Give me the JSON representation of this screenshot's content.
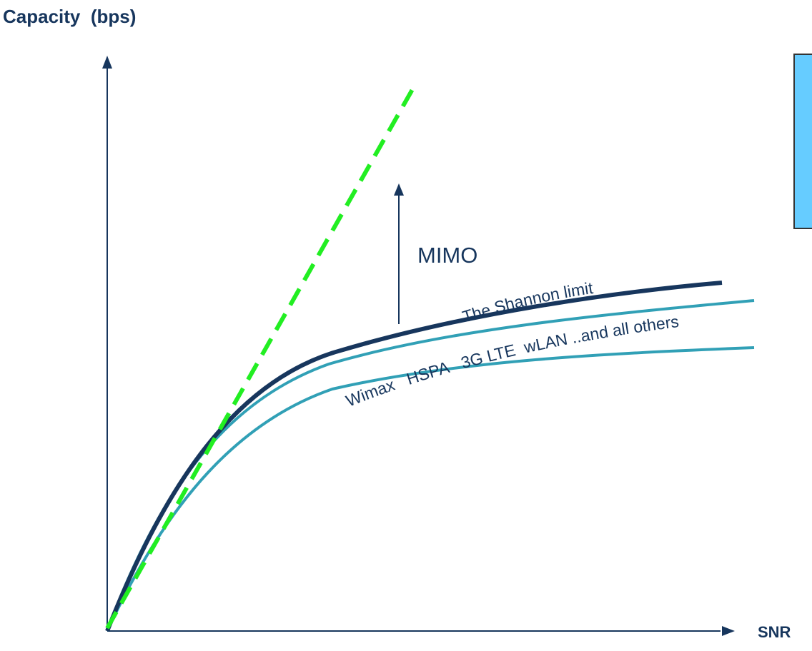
{
  "y_axis_label": "Capacity  (bps)",
  "x_axis_label": "SNR",
  "mimo_label": "MIMO",
  "shannon_label": "The Shannon limit",
  "technologies_label": "Wimax   HSPA   3G LTE  wLAN ..and all others",
  "colors": {
    "axis": "#17365d",
    "shannon_curve": "#17365d",
    "technology_curves": "#31a0b6",
    "mimo_line": "#22ee22",
    "box_fill": "#66ccff",
    "box_border": "#333333"
  }
}
